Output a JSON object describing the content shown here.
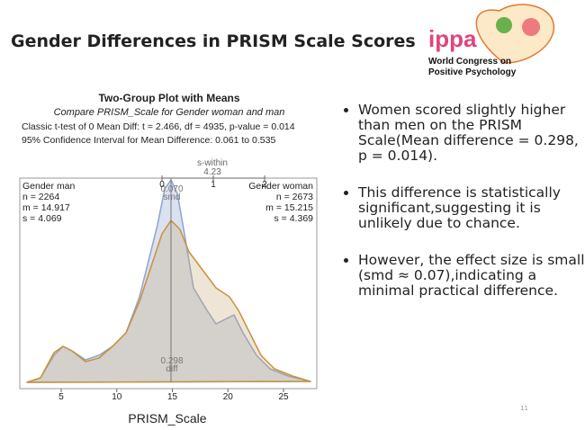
{
  "header": {
    "title": "Gender Differences in PRISM Scale Scores"
  },
  "logo": {
    "brand": "ippa",
    "line1": "World Congress on",
    "line2": "Positive Psychology"
  },
  "figure": {
    "title": "Two-Group Plot with Means",
    "subtitle": "Compare PRISM_Scale for Gender woman and man",
    "test": "Classic t-test of 0 Mean Diff:  t = 2.466,  df = 4935,   p-value = 0.014",
    "ci": "95% Confidence Interval for Mean Difference:  0.061 to 0.535",
    "top_axis": {
      "label": "s-within",
      "value": "4.23",
      "ticks": [
        0,
        1,
        2
      ]
    },
    "smd": {
      "value": "0.070",
      "label": "smd"
    },
    "diff": {
      "value": "0.298",
      "label": "diff"
    },
    "group_left": [
      "Gender man",
      "n = 2264",
      "m = 14.917",
      "s = 4.069"
    ],
    "group_right": [
      "Gender woman",
      "n = 2673",
      "m = 15.215",
      "s = 4.369"
    ],
    "x_axis": {
      "label": "PRISM_Scale",
      "ticks": [
        5,
        10,
        15,
        20,
        25
      ]
    }
  },
  "bullets": [
    "Women scored slightly higher than men on the PRISM Scale(Mean difference = 0.298, p = 0.014).",
    "This difference is statistically significant,suggesting it is unlikely due to chance.",
    "However, the effect size is small (smd ≈ 0.07),indicating a minimal practical difference."
  ],
  "page_number": "11"
}
